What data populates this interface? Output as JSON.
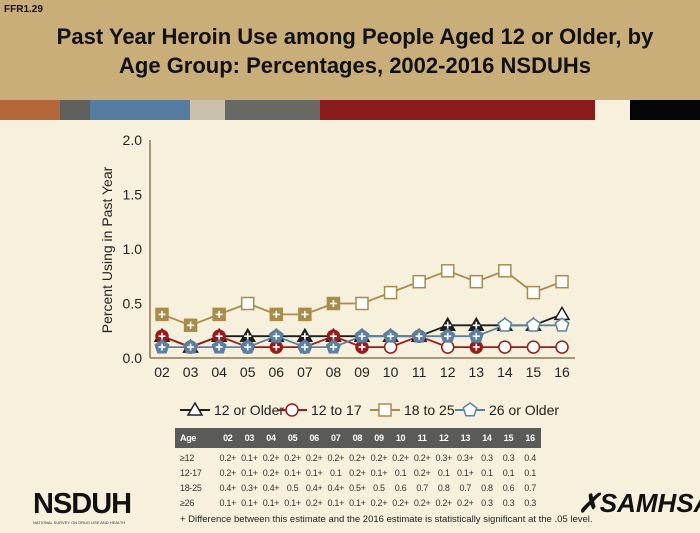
{
  "slide_code": "FFR1.29",
  "title_line1": "Past Year Heroin Use among People Aged 12 or Older, by",
  "title_line2": "Age Group: Percentages, 2002-2016 NSDUHs",
  "strip_colors": [
    "#b4683a",
    "#5f5f5c",
    "#567d9f",
    "#c9c0ad",
    "#686865",
    "#8a1c1c",
    "#f7f0dc",
    "#050505"
  ],
  "chart_data": {
    "type": "line",
    "ylabel": "Percent Using in Past Year",
    "xlabel": "",
    "categories": [
      "02",
      "03",
      "04",
      "05",
      "06",
      "07",
      "08",
      "09",
      "10",
      "11",
      "12",
      "13",
      "14",
      "15",
      "16"
    ],
    "yticks": [
      "0.0",
      "0.5",
      "1.0",
      "1.5",
      "2.0"
    ],
    "ylim": [
      0,
      2.0
    ],
    "legend_position": "bottom",
    "series": [
      {
        "name": "12 or Older",
        "marker": "triangle",
        "color": "#1e1e1e",
        "values": [
          0.2,
          0.1,
          0.2,
          0.2,
          0.2,
          0.2,
          0.2,
          0.2,
          0.2,
          0.2,
          0.3,
          0.3,
          0.3,
          0.3,
          0.4
        ],
        "significant": [
          1,
          1,
          1,
          1,
          1,
          1,
          1,
          1,
          1,
          1,
          1,
          1,
          0,
          0,
          0
        ]
      },
      {
        "name": "12 to 17",
        "marker": "circle",
        "color": "#9a1b1b",
        "values": [
          0.2,
          0.1,
          0.2,
          0.1,
          0.1,
          0.1,
          0.2,
          0.1,
          0.1,
          0.2,
          0.1,
          0.1,
          0.1,
          0.1,
          0.1
        ],
        "significant": [
          1,
          1,
          1,
          1,
          1,
          0,
          1,
          1,
          0,
          1,
          0,
          1,
          0,
          0,
          0
        ]
      },
      {
        "name": "18 to 25",
        "marker": "square",
        "color": "#a88c4b",
        "values": [
          0.4,
          0.3,
          0.4,
          0.5,
          0.4,
          0.4,
          0.5,
          0.5,
          0.6,
          0.7,
          0.8,
          0.7,
          0.8,
          0.6,
          0.7
        ],
        "significant": [
          1,
          1,
          1,
          0,
          1,
          1,
          1,
          0,
          0,
          0,
          0,
          0,
          0,
          0,
          0
        ]
      },
      {
        "name": "26 or Older",
        "marker": "pentagon",
        "color": "#5b80a1",
        "values": [
          0.1,
          0.1,
          0.1,
          0.1,
          0.2,
          0.1,
          0.1,
          0.2,
          0.2,
          0.2,
          0.2,
          0.2,
          0.3,
          0.3,
          0.3
        ],
        "significant": [
          1,
          1,
          1,
          1,
          1,
          1,
          1,
          1,
          1,
          1,
          1,
          1,
          0,
          0,
          0
        ]
      }
    ]
  },
  "table": {
    "header": [
      "Age",
      "02",
      "03",
      "04",
      "05",
      "06",
      "07",
      "08",
      "09",
      "10",
      "11",
      "12",
      "13",
      "14",
      "15",
      "16"
    ],
    "rows": [
      [
        "≥12",
        "0.2+",
        "0.1+",
        "0.2+",
        "0.2+",
        "0.2+",
        "0.2+",
        "0.2+",
        "0.2+",
        "0.2+",
        "0.2+",
        "0.3+",
        "0.3+",
        "0.3",
        "0.3",
        "0.4"
      ],
      [
        "12-17",
        "0.2+",
        "0.1+",
        "0.2+",
        "0.1+",
        "0.1+",
        "0.1",
        "0.2+",
        "0.1+",
        "0.1",
        "0.2+",
        "0.1",
        "0.1+",
        "0.1",
        "0.1",
        "0.1"
      ],
      [
        "18-25",
        "0.4+",
        "0.3+",
        "0.4+",
        "0.5",
        "0.4+",
        "0.4+",
        "0.5+",
        "0.5",
        "0.6",
        "0.7",
        "0.8",
        "0.7",
        "0.8",
        "0.6",
        "0.7"
      ],
      [
        "≥26",
        "0.1+",
        "0.1+",
        "0.1+",
        "0.1+",
        "0.2+",
        "0.1+",
        "0.1+",
        "0.2+",
        "0.2+",
        "0.2+",
        "0.2+",
        "0.2+",
        "0.3",
        "0.3",
        "0.3"
      ]
    ]
  },
  "footnote": "+ Difference between this estimate and the 2016 estimate is statistically significant at the .05 level.",
  "logos": {
    "nsduh": "NSDUH",
    "nsduh_sub": "NATIONAL SURVEY ON DRUG USE AND HEALTH",
    "samhsa": "SAMHSA"
  }
}
